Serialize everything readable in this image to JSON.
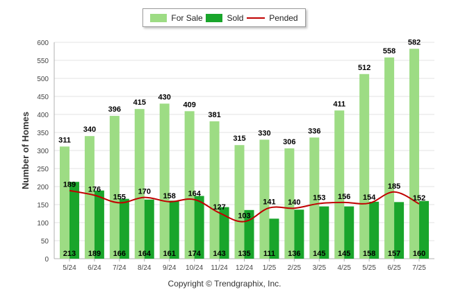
{
  "legend": {
    "for_sale": "For Sale",
    "sold": "Sold",
    "pended": "Pended"
  },
  "copyright": "Copyright © Trendgraphix, Inc.",
  "colors": {
    "for_sale": "#9ddc84",
    "sold": "#19a52b",
    "pended": "#c00000",
    "grid": "#e3e3e3",
    "axis_text": "#444444"
  },
  "chart_data": {
    "type": "bar",
    "ylabel": "Number of Homes",
    "xlabel": "",
    "ylim": [
      0,
      600
    ],
    "yticks": [
      0,
      50,
      100,
      150,
      200,
      250,
      300,
      350,
      400,
      450,
      500,
      550,
      600
    ],
    "grid": true,
    "legend_position": "top-center",
    "categories": [
      "5/24",
      "6/24",
      "7/24",
      "8/24",
      "9/24",
      "10/24",
      "11/24",
      "12/24",
      "1/25",
      "2/25",
      "3/25",
      "4/25",
      "5/25",
      "6/25",
      "7/25"
    ],
    "series": [
      {
        "name": "For Sale",
        "kind": "bar",
        "values": [
          311,
          340,
          396,
          415,
          430,
          409,
          381,
          315,
          330,
          306,
          336,
          411,
          512,
          558,
          582
        ]
      },
      {
        "name": "Sold",
        "kind": "bar",
        "values": [
          213,
          189,
          166,
          164,
          161,
          174,
          143,
          135,
          111,
          136,
          145,
          145,
          158,
          157,
          160
        ]
      },
      {
        "name": "Pended",
        "kind": "line",
        "values": [
          189,
          176,
          155,
          170,
          158,
          164,
          127,
          103,
          141,
          140,
          153,
          156,
          154,
          185,
          152
        ]
      }
    ]
  }
}
